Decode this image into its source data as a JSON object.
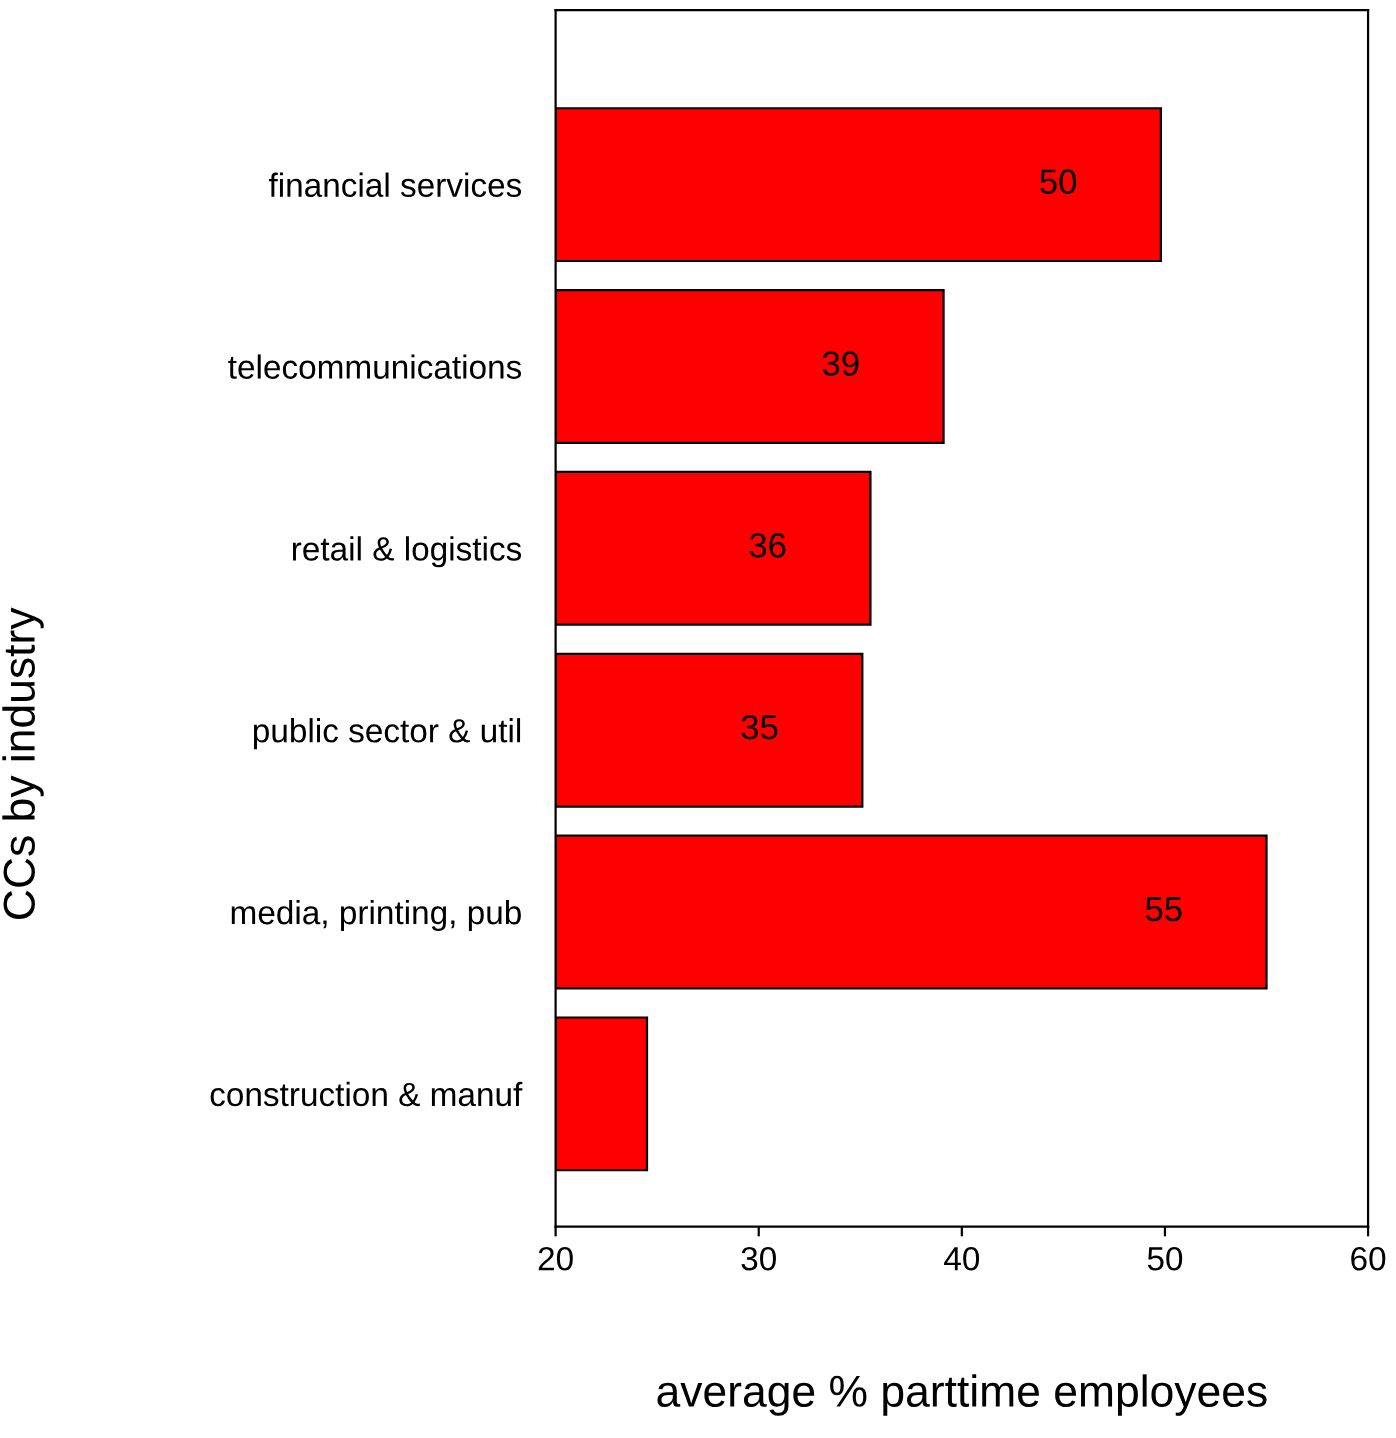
{
  "chart_data": {
    "type": "bar",
    "orientation": "horizontal",
    "xlabel": "average % parttime employees",
    "ylabel": "CCs by industry",
    "categories": [
      "financial services",
      "telecommunications",
      "retail & logistics",
      "public sector & util",
      "media, printing, pub",
      "construction & manuf"
    ],
    "base": [
      20,
      20,
      20,
      20,
      20,
      20
    ],
    "values": [
      29.8,
      19.1,
      15.5,
      15.1,
      35.0,
      4.5
    ],
    "value_labels": [
      "50",
      "39",
      "36",
      "35",
      "55",
      null
    ],
    "color": "#ff0000",
    "xlim": [
      20,
      60
    ],
    "xticks": [
      20,
      30,
      40,
      50,
      60
    ],
    "grid": false,
    "legend": false
  }
}
